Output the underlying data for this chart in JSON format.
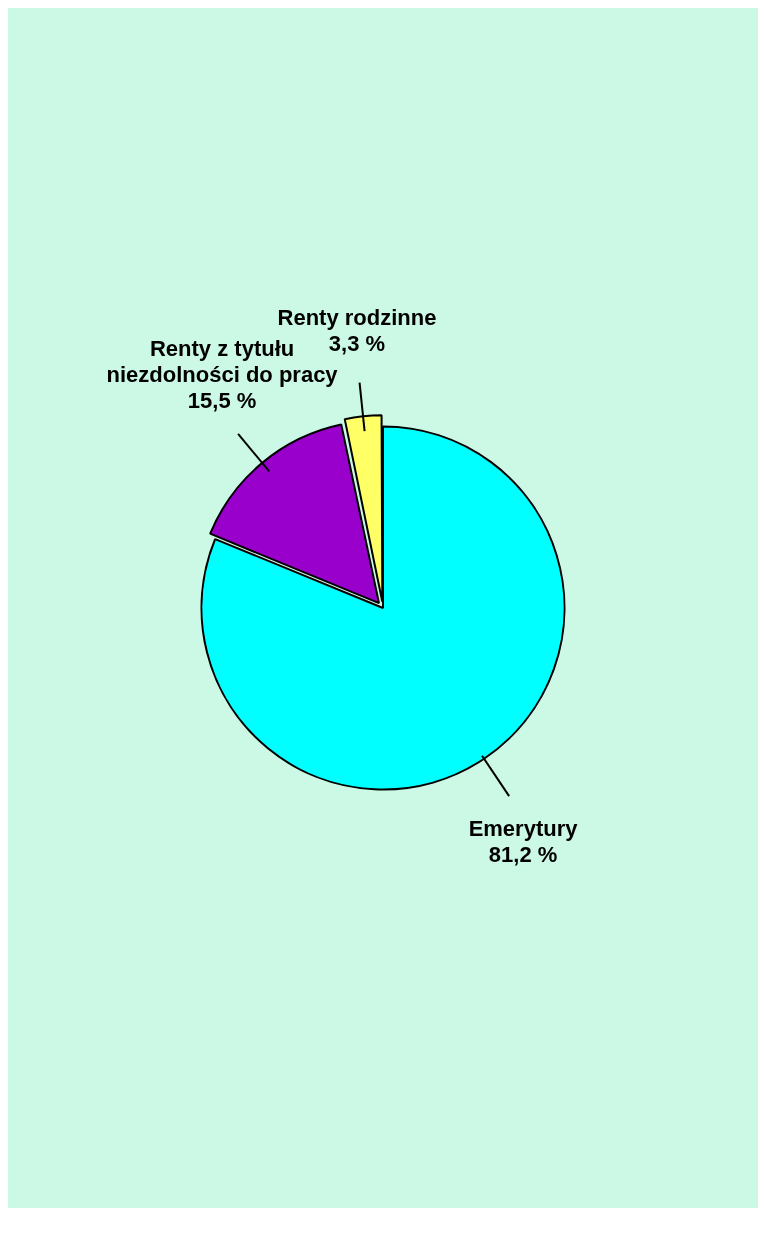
{
  "chart_data": {
    "type": "pie",
    "categories": [
      "Emerytury",
      "Renty z tytułu niezdolności do pracy",
      "Renty rodzinne"
    ],
    "values": [
      81.2,
      15.5,
      3.3
    ],
    "colors": [
      "#00ffff",
      "#9900cc",
      "#ffff66"
    ],
    "value_labels": [
      "81,2 %",
      "15,5 %",
      "3,3 %"
    ],
    "legend": false
  }
}
